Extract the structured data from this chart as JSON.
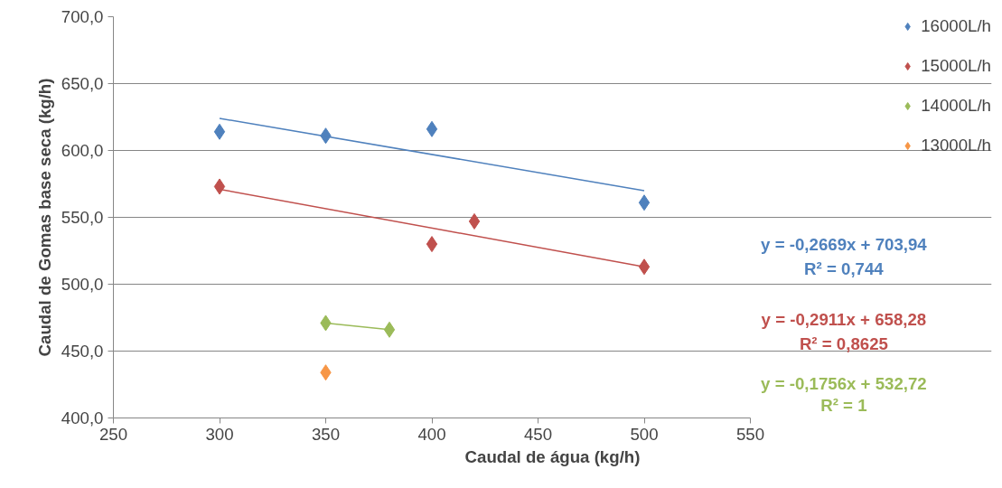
{
  "chart_data": {
    "type": "scatter",
    "xlabel": "Caudal de água (kg/h)",
    "ylabel": "Caudal de Gomas base seca (kg/h)",
    "xlim": [
      250,
      550
    ],
    "xticks": [
      250,
      300,
      350,
      400,
      450,
      500,
      550
    ],
    "ylim": [
      400,
      700
    ],
    "yticks": [
      {
        "value": 400,
        "label": "400,0"
      },
      {
        "value": 450,
        "label": "450,0"
      },
      {
        "value": 500,
        "label": "500,0"
      },
      {
        "value": 550,
        "label": "550,0"
      },
      {
        "value": 600,
        "label": "600,0"
      },
      {
        "value": 650,
        "label": "650,0"
      },
      {
        "value": 700,
        "label": "700,0"
      }
    ],
    "grid": "y",
    "legend": "top right",
    "marker": "diamond",
    "series": [
      {
        "name": "16000L/h",
        "color": "#4f81bd",
        "x": [
          300,
          350,
          400,
          500
        ],
        "values": [
          614,
          611,
          616,
          561
        ]
      },
      {
        "name": "15000L/h",
        "color": "#c0504d",
        "x": [
          300,
          400,
          420,
          500
        ],
        "values": [
          573,
          530,
          547,
          513
        ]
      },
      {
        "name": "14000L/h",
        "color": "#9bbb59",
        "x": [
          350,
          380
        ],
        "values": [
          471,
          466
        ]
      },
      {
        "name": "13000L/h",
        "color": "#f79646",
        "x": [
          350
        ],
        "values": [
          434
        ]
      },
      {
        "type": "line",
        "marker": "none",
        "color": "#4f81bd",
        "x": [
          300,
          500
        ],
        "values": [
          624,
          570
        ]
      },
      {
        "type": "line",
        "marker": "none",
        "color": "#c0504d",
        "x": [
          300,
          500
        ],
        "values": [
          571,
          513
        ]
      },
      {
        "type": "line",
        "marker": "none",
        "color": "#9bbb59",
        "x": [
          350,
          380
        ],
        "values": [
          471,
          466
        ]
      }
    ],
    "annotations": [
      "y = -0,2669x + 703,94\nR² = 0,744",
      "y = -0,2911x + 658,28\nR² = 0,8625",
      "y = -0,1756x + 532,72\nR² = 1"
    ]
  }
}
